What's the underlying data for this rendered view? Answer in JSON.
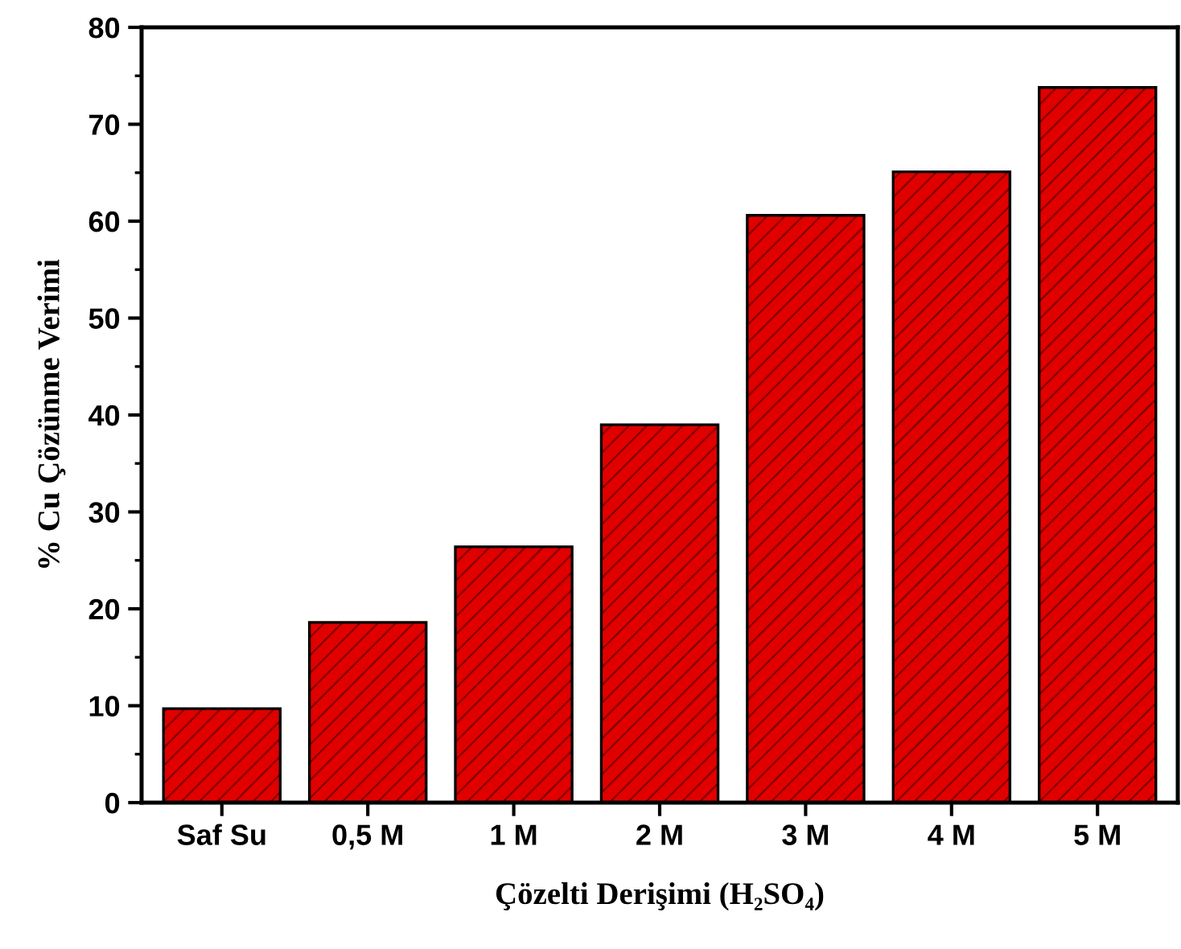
{
  "chart_data": {
    "type": "bar",
    "xlabel": "Çözelti Derişimi (H₂SO₄)",
    "ylabel": "% Cu Çözünme Verimi",
    "categories": [
      "Saf Su",
      "0,5 M",
      "1 M",
      "2 M",
      "3 M",
      "4 M",
      "5 M"
    ],
    "values": [
      9.7,
      18.6,
      26.4,
      39.0,
      60.6,
      65.1,
      73.8
    ],
    "color": "#e00000",
    "ylim": [
      0,
      80
    ],
    "yticks": [
      0,
      10,
      20,
      30,
      40,
      50,
      60,
      70,
      80
    ],
    "grid": false
  }
}
